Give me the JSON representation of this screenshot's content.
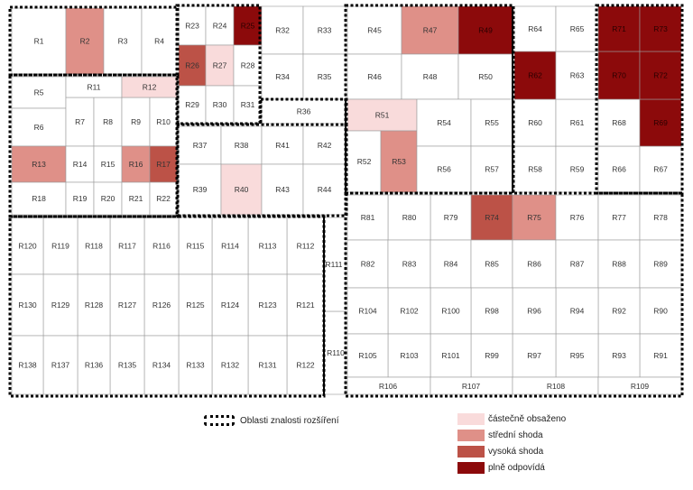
{
  "colors": {
    "none": "#ffffff",
    "partial": "#f9dbdb",
    "medium": "#df9088",
    "high": "#bc5247",
    "full": "#8c0a0b",
    "line": "#9a9a9a"
  },
  "legend": {
    "dotted_label": "Oblasti znalosti rozšíření",
    "partial": "částečně obsaženo",
    "medium": "střední shoda",
    "high": "vysoká shoda",
    "full": "plně odpovídá"
  },
  "rooms": [
    {
      "id": "R1",
      "level": "none"
    },
    {
      "id": "R2",
      "level": "medium"
    },
    {
      "id": "R3",
      "level": "none"
    },
    {
      "id": "R4",
      "level": "none"
    },
    {
      "id": "R5",
      "level": "none"
    },
    {
      "id": "R6",
      "level": "none"
    },
    {
      "id": "R7",
      "level": "none"
    },
    {
      "id": "R8",
      "level": "none"
    },
    {
      "id": "R9",
      "level": "none"
    },
    {
      "id": "R10",
      "level": "none"
    },
    {
      "id": "R11",
      "level": "none"
    },
    {
      "id": "R12",
      "level": "partial"
    },
    {
      "id": "R13",
      "level": "medium"
    },
    {
      "id": "R14",
      "level": "none"
    },
    {
      "id": "R15",
      "level": "none"
    },
    {
      "id": "R16",
      "level": "medium"
    },
    {
      "id": "R17",
      "level": "high"
    },
    {
      "id": "R18",
      "level": "none"
    },
    {
      "id": "R19",
      "level": "none"
    },
    {
      "id": "R20",
      "level": "none"
    },
    {
      "id": "R21",
      "level": "none"
    },
    {
      "id": "R22",
      "level": "none"
    },
    {
      "id": "R23",
      "level": "none"
    },
    {
      "id": "R24",
      "level": "none"
    },
    {
      "id": "R25",
      "level": "full"
    },
    {
      "id": "R26",
      "level": "high"
    },
    {
      "id": "R27",
      "level": "partial"
    },
    {
      "id": "R28",
      "level": "none"
    },
    {
      "id": "R29",
      "level": "none"
    },
    {
      "id": "R30",
      "level": "none"
    },
    {
      "id": "R31",
      "level": "none"
    },
    {
      "id": "R32",
      "level": "none"
    },
    {
      "id": "R33",
      "level": "none"
    },
    {
      "id": "R34",
      "level": "none"
    },
    {
      "id": "R35",
      "level": "none"
    },
    {
      "id": "R36",
      "level": "none"
    },
    {
      "id": "R37",
      "level": "none"
    },
    {
      "id": "R38",
      "level": "none"
    },
    {
      "id": "R39",
      "level": "none"
    },
    {
      "id": "R40",
      "level": "partial"
    },
    {
      "id": "R41",
      "level": "none"
    },
    {
      "id": "R42",
      "level": "none"
    },
    {
      "id": "R43",
      "level": "none"
    },
    {
      "id": "R44",
      "level": "none"
    },
    {
      "id": "R45",
      "level": "none"
    },
    {
      "id": "R46",
      "level": "none"
    },
    {
      "id": "R47",
      "level": "medium"
    },
    {
      "id": "R48",
      "level": "none"
    },
    {
      "id": "R49",
      "level": "full"
    },
    {
      "id": "R50",
      "level": "none"
    },
    {
      "id": "R51",
      "level": "partial"
    },
    {
      "id": "R52",
      "level": "none"
    },
    {
      "id": "R53",
      "level": "medium"
    },
    {
      "id": "R54",
      "level": "none"
    },
    {
      "id": "R55",
      "level": "none"
    },
    {
      "id": "R56",
      "level": "none"
    },
    {
      "id": "R57",
      "level": "none"
    },
    {
      "id": "R58",
      "level": "none"
    },
    {
      "id": "R59",
      "level": "none"
    },
    {
      "id": "R60",
      "level": "none"
    },
    {
      "id": "R61",
      "level": "none"
    },
    {
      "id": "R62",
      "level": "full"
    },
    {
      "id": "R63",
      "level": "none"
    },
    {
      "id": "R64",
      "level": "none"
    },
    {
      "id": "R65",
      "level": "none"
    },
    {
      "id": "R66",
      "level": "none"
    },
    {
      "id": "R67",
      "level": "none"
    },
    {
      "id": "R68",
      "level": "none"
    },
    {
      "id": "R69",
      "level": "full"
    },
    {
      "id": "R70",
      "level": "full"
    },
    {
      "id": "R71",
      "level": "full"
    },
    {
      "id": "R72",
      "level": "full"
    },
    {
      "id": "R73",
      "level": "full"
    },
    {
      "id": "R74",
      "level": "high"
    },
    {
      "id": "R75",
      "level": "medium"
    },
    {
      "id": "R76",
      "level": "none"
    },
    {
      "id": "R77",
      "level": "none"
    },
    {
      "id": "R78",
      "level": "none"
    },
    {
      "id": "R79",
      "level": "none"
    },
    {
      "id": "R80",
      "level": "none"
    },
    {
      "id": "R81",
      "level": "none"
    },
    {
      "id": "R82",
      "level": "none"
    },
    {
      "id": "R83",
      "level": "none"
    },
    {
      "id": "R84",
      "level": "none"
    },
    {
      "id": "R85",
      "level": "none"
    },
    {
      "id": "R86",
      "level": "none"
    },
    {
      "id": "R87",
      "level": "none"
    },
    {
      "id": "R88",
      "level": "none"
    },
    {
      "id": "R89",
      "level": "none"
    },
    {
      "id": "R90",
      "level": "none"
    },
    {
      "id": "R91",
      "level": "none"
    },
    {
      "id": "R92",
      "level": "none"
    },
    {
      "id": "R93",
      "level": "none"
    },
    {
      "id": "R94",
      "level": "none"
    },
    {
      "id": "R95",
      "level": "none"
    },
    {
      "id": "R96",
      "level": "none"
    },
    {
      "id": "R97",
      "level": "none"
    },
    {
      "id": "R98",
      "level": "none"
    },
    {
      "id": "R99",
      "level": "none"
    },
    {
      "id": "R100",
      "level": "none"
    },
    {
      "id": "R101",
      "level": "none"
    },
    {
      "id": "R102",
      "level": "none"
    },
    {
      "id": "R103",
      "level": "none"
    },
    {
      "id": "R104",
      "level": "none"
    },
    {
      "id": "R105",
      "level": "none"
    },
    {
      "id": "R106",
      "level": "none"
    },
    {
      "id": "R107",
      "level": "none"
    },
    {
      "id": "R108",
      "level": "none"
    },
    {
      "id": "R109",
      "level": "none"
    },
    {
      "id": "R110",
      "level": "none"
    },
    {
      "id": "R111",
      "level": "none"
    },
    {
      "id": "R112",
      "level": "none"
    },
    {
      "id": "R113",
      "level": "none"
    },
    {
      "id": "R114",
      "level": "none"
    },
    {
      "id": "R115",
      "level": "none"
    },
    {
      "id": "R116",
      "level": "none"
    },
    {
      "id": "R117",
      "level": "none"
    },
    {
      "id": "R118",
      "level": "none"
    },
    {
      "id": "R119",
      "level": "none"
    },
    {
      "id": "R120",
      "level": "none"
    },
    {
      "id": "R121",
      "level": "none"
    },
    {
      "id": "R122",
      "level": "none"
    },
    {
      "id": "R123",
      "level": "none"
    },
    {
      "id": "R124",
      "level": "none"
    },
    {
      "id": "R125",
      "level": "none"
    },
    {
      "id": "R126",
      "level": "none"
    },
    {
      "id": "R127",
      "level": "none"
    },
    {
      "id": "R128",
      "level": "none"
    },
    {
      "id": "R129",
      "level": "none"
    },
    {
      "id": "R130",
      "level": "none"
    },
    {
      "id": "R131",
      "level": "none"
    },
    {
      "id": "R132",
      "level": "none"
    },
    {
      "id": "R133",
      "level": "none"
    },
    {
      "id": "R134",
      "level": "none"
    },
    {
      "id": "R135",
      "level": "none"
    },
    {
      "id": "R136",
      "level": "none"
    },
    {
      "id": "R137",
      "level": "none"
    },
    {
      "id": "R138",
      "level": "none"
    }
  ]
}
